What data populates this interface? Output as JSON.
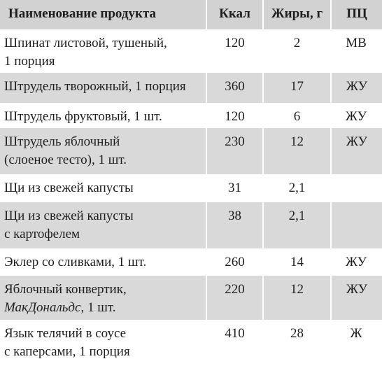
{
  "headers": {
    "name": "Наименование продукта",
    "kcal": "Ккал",
    "fat": "Жиры, г",
    "pc": "ПЦ"
  },
  "rows": [
    {
      "name_line1": "Шпинат листовой, тушеный,",
      "name_line2": "1 порция",
      "kcal": "120",
      "fat": "2",
      "pc": "МВ"
    },
    {
      "name_line1": "Штрудель творожный, 1 порция",
      "name_line2": "",
      "kcal": "360",
      "fat": "17",
      "pc": "ЖУ"
    },
    {
      "name_line1": "Штрудель фруктовый, 1 шт.",
      "name_line2": "",
      "kcal": "120",
      "fat": "6",
      "pc": "ЖУ"
    },
    {
      "name_line1": "Штрудель яблочный",
      "name_line2": "(слоеное тесто), 1 шт.",
      "kcal": "230",
      "fat": "12",
      "pc": "ЖУ"
    },
    {
      "name_line1": "Щи из свежей капусты",
      "name_line2": "",
      "kcal": "31",
      "fat": "2,1",
      "pc": ""
    },
    {
      "name_line1": "Щи из свежей капусты",
      "name_line2": "с картофелем",
      "kcal": "38",
      "fat": "2,1",
      "pc": ""
    },
    {
      "name_line1": "Эклер со сливками, 1 шт.",
      "name_line2": "",
      "kcal": "260",
      "fat": "14",
      "pc": "ЖУ"
    },
    {
      "name_line1": "Яблочный конвертик,",
      "name_line2_italic": "МакДональдс",
      "name_line2_rest": ", 1 шт.",
      "kcal": "220",
      "fat": "12",
      "pc": "ЖУ"
    },
    {
      "name_line1": "Язык телячий в соусе",
      "name_line2": "с каперсами, 1 порция",
      "kcal": "410",
      "fat": "28",
      "pc": "Ж"
    }
  ]
}
